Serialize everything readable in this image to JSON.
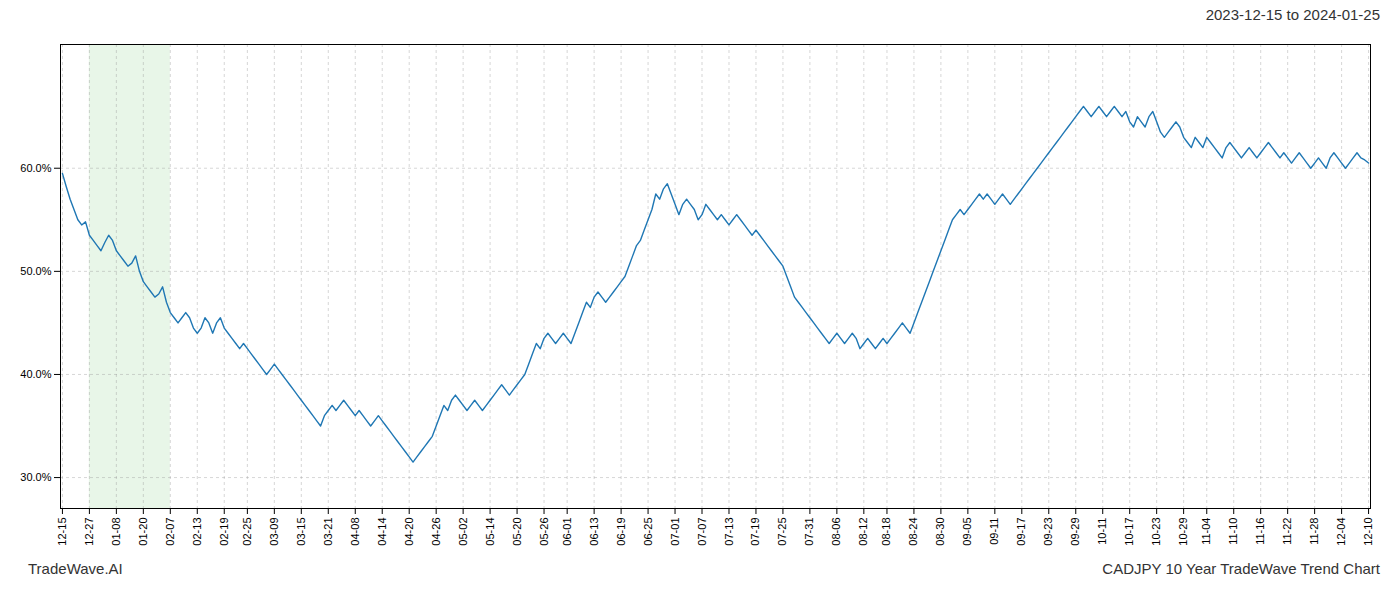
{
  "chart_data": {
    "type": "line",
    "title": "2023-12-15 to 2024-01-25",
    "annotations": [
      {
        "type": "text",
        "text": "TradeWave.AI"
      },
      {
        "type": "text",
        "text": "CADJPY 10 Year TradeWave Trend Chart"
      },
      {
        "type": "span",
        "x_start": "12-27",
        "x_end": "02-07",
        "color": "#d6eed6"
      }
    ],
    "color": "#1f77b4",
    "grid": true,
    "ylim": [
      27.0,
      72.0
    ],
    "yticks": [
      {
        "value": 30.0,
        "label": "30.0%"
      },
      {
        "value": 40.0,
        "label": "40.0%"
      },
      {
        "value": 50.0,
        "label": "50.0%"
      },
      {
        "value": 60.0,
        "label": "60.0%"
      }
    ],
    "categories": [
      "12-15",
      null,
      null,
      null,
      null,
      null,
      null,
      "12-27",
      null,
      null,
      null,
      null,
      null,
      null,
      "01-08",
      null,
      null,
      null,
      null,
      null,
      null,
      "01-20",
      null,
      null,
      null,
      null,
      null,
      null,
      "02-07",
      null,
      null,
      null,
      null,
      null,
      null,
      "02-13",
      null,
      null,
      null,
      null,
      null,
      null,
      "02-19",
      null,
      null,
      null,
      null,
      null,
      "02-25",
      null,
      null,
      null,
      null,
      null,
      null,
      "03-09",
      null,
      null,
      null,
      null,
      null,
      null,
      "03-15",
      null,
      null,
      null,
      null,
      null,
      null,
      "03-21",
      null,
      null,
      null,
      null,
      null,
      null,
      "04-08",
      null,
      null,
      null,
      null,
      null,
      null,
      "04-14",
      null,
      null,
      null,
      null,
      null,
      null,
      "04-20",
      null,
      null,
      null,
      null,
      null,
      null,
      "04-26",
      null,
      null,
      null,
      null,
      null,
      null,
      "05-02",
      null,
      null,
      null,
      null,
      null,
      null,
      "05-14",
      null,
      null,
      null,
      null,
      null,
      null,
      "05-20",
      null,
      null,
      null,
      null,
      null,
      null,
      "05-26",
      null,
      null,
      null,
      null,
      null,
      "06-01",
      null,
      null,
      null,
      null,
      null,
      null,
      "06-13",
      null,
      null,
      null,
      null,
      null,
      null,
      "06-19",
      null,
      null,
      null,
      null,
      null,
      null,
      "06-25",
      null,
      null,
      null,
      null,
      null,
      null,
      "07-01",
      null,
      null,
      null,
      null,
      null,
      null,
      "07-07",
      null,
      null,
      null,
      null,
      null,
      null,
      "07-13",
      null,
      null,
      null,
      null,
      null,
      null,
      "07-19",
      null,
      null,
      null,
      null,
      null,
      null,
      "07-25",
      null,
      null,
      null,
      null,
      null,
      null,
      "07-31",
      null,
      null,
      null,
      null,
      null,
      null,
      "08-06",
      null,
      null,
      null,
      null,
      null,
      null,
      "08-12",
      null,
      null,
      null,
      null,
      null,
      "08-18",
      null,
      null,
      null,
      null,
      null,
      null,
      "08-24",
      null,
      null,
      null,
      null,
      null,
      null,
      "08-30",
      null,
      null,
      null,
      null,
      null,
      null,
      "09-05",
      null,
      null,
      null,
      null,
      null,
      null,
      "09-11",
      null,
      null,
      null,
      null,
      null,
      null,
      "09-17",
      null,
      null,
      null,
      null,
      null,
      null,
      "09-23",
      null,
      null,
      null,
      null,
      null,
      null,
      "09-29",
      null,
      null,
      null,
      null,
      null,
      null,
      "10-11",
      null,
      null,
      null,
      null,
      null,
      null,
      "10-17",
      null,
      null,
      null,
      null,
      null,
      null,
      "10-23",
      null,
      null,
      null,
      null,
      null,
      null,
      "10-29",
      null,
      null,
      null,
      null,
      null,
      "11-04",
      null,
      null,
      null,
      null,
      null,
      null,
      "11-10",
      null,
      null,
      null,
      null,
      null,
      null,
      "11-16",
      null,
      null,
      null,
      null,
      null,
      null,
      "11-22",
      null,
      null,
      null,
      null,
      null,
      null,
      "11-28",
      null,
      null,
      null,
      null,
      null,
      null,
      "12-04",
      null,
      null,
      null,
      null,
      null,
      null,
      "12-10"
    ],
    "values": [
      59.5,
      58.2,
      57.0,
      56.0,
      55.0,
      54.5,
      54.8,
      53.5,
      53.0,
      52.5,
      52.0,
      52.8,
      53.5,
      53.0,
      52.0,
      51.5,
      51.0,
      50.5,
      50.8,
      51.5,
      50.0,
      49.0,
      48.5,
      48.0,
      47.5,
      47.8,
      48.5,
      47.0,
      46.0,
      45.5,
      45.0,
      45.5,
      46.0,
      45.5,
      44.5,
      44.0,
      44.5,
      45.5,
      45.0,
      44.0,
      45.0,
      45.5,
      44.5,
      44.0,
      43.5,
      43.0,
      42.5,
      43.0,
      42.5,
      42.0,
      41.5,
      41.0,
      40.5,
      40.0,
      40.5,
      41.0,
      40.5,
      40.0,
      39.5,
      39.0,
      38.5,
      38.0,
      37.5,
      37.0,
      36.5,
      36.0,
      35.5,
      35.0,
      36.0,
      36.5,
      37.0,
      36.5,
      37.0,
      37.5,
      37.0,
      36.5,
      36.0,
      36.5,
      36.0,
      35.5,
      35.0,
      35.5,
      36.0,
      35.5,
      35.0,
      34.5,
      34.0,
      33.5,
      33.0,
      32.5,
      32.0,
      31.5,
      32.0,
      32.5,
      33.0,
      33.5,
      34.0,
      35.0,
      36.0,
      37.0,
      36.5,
      37.5,
      38.0,
      37.5,
      37.0,
      36.5,
      37.0,
      37.5,
      37.0,
      36.5,
      37.0,
      37.5,
      38.0,
      38.5,
      39.0,
      38.5,
      38.0,
      38.5,
      39.0,
      39.5,
      40.0,
      41.0,
      42.0,
      43.0,
      42.5,
      43.5,
      44.0,
      43.5,
      43.0,
      43.5,
      44.0,
      43.5,
      43.0,
      44.0,
      45.0,
      46.0,
      47.0,
      46.5,
      47.5,
      48.0,
      47.5,
      47.0,
      47.5,
      48.0,
      48.5,
      49.0,
      49.5,
      50.5,
      51.5,
      52.5,
      53.0,
      54.0,
      55.0,
      56.0,
      57.5,
      57.0,
      58.0,
      58.5,
      57.5,
      56.5,
      55.5,
      56.5,
      57.0,
      56.5,
      56.0,
      55.0,
      55.5,
      56.5,
      56.0,
      55.5,
      55.0,
      55.5,
      55.0,
      54.5,
      55.0,
      55.5,
      55.0,
      54.5,
      54.0,
      53.5,
      54.0,
      53.5,
      53.0,
      52.5,
      52.0,
      51.5,
      51.0,
      50.5,
      49.5,
      48.5,
      47.5,
      47.0,
      46.5,
      46.0,
      45.5,
      45.0,
      44.5,
      44.0,
      43.5,
      43.0,
      43.5,
      44.0,
      43.5,
      43.0,
      43.5,
      44.0,
      43.5,
      42.5,
      43.0,
      43.5,
      43.0,
      42.5,
      43.0,
      43.5,
      43.0,
      43.5,
      44.0,
      44.5,
      45.0,
      44.5,
      44.0,
      45.0,
      46.0,
      47.0,
      48.0,
      49.0,
      50.0,
      51.0,
      52.0,
      53.0,
      54.0,
      55.0,
      55.5,
      56.0,
      55.5,
      56.0,
      56.5,
      57.0,
      57.5,
      57.0,
      57.5,
      57.0,
      56.5,
      57.0,
      57.5,
      57.0,
      56.5,
      57.0,
      57.5,
      58.0,
      58.5,
      59.0,
      59.5,
      60.0,
      60.5,
      61.0,
      61.5,
      62.0,
      62.5,
      63.0,
      63.5,
      64.0,
      64.5,
      65.0,
      65.5,
      66.0,
      65.5,
      65.0,
      65.5,
      66.0,
      65.5,
      65.0,
      65.5,
      66.0,
      65.5,
      65.0,
      65.5,
      64.5,
      64.0,
      65.0,
      64.5,
      64.0,
      65.0,
      65.5,
      64.5,
      63.5,
      63.0,
      63.5,
      64.0,
      64.5,
      64.0,
      63.0,
      62.5,
      62.0,
      63.0,
      62.5,
      62.0,
      63.0,
      62.5,
      62.0,
      61.5,
      61.0,
      62.0,
      62.5,
      62.0,
      61.5,
      61.0,
      61.5,
      62.0,
      61.5,
      61.0,
      61.5,
      62.0,
      62.5,
      62.0,
      61.5,
      61.0,
      61.5,
      61.0,
      60.5,
      61.0,
      61.5,
      61.0,
      60.5,
      60.0,
      60.5,
      61.0,
      60.5,
      60.0,
      61.0,
      61.5,
      61.0,
      60.5,
      60.0,
      60.5,
      61.0,
      61.5,
      61.0,
      60.8,
      60.5
    ]
  }
}
